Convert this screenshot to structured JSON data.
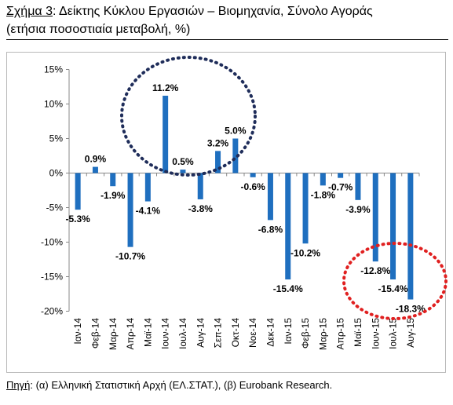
{
  "header": {
    "title_label": "Σχήμα 3",
    "title_text": ": Δείκτης Κύκλου Εργασιών – Βιομηχανία, Σύνολο Αγοράς",
    "subtitle": "(ετήσια ποσοστιαία μεταβολή, %)"
  },
  "footer": {
    "source_label": "Πηγή",
    "source_text": ": (α) Ελληνική Στατιστική Αρχή (ΕΛ.ΣΤΑΤ.), (β) Eurobank Research."
  },
  "colors": {
    "bar": "#1f6fbf",
    "highlight_circle": "#1f2d5a",
    "recent_circle": "#e02020",
    "grid": "#888888"
  },
  "chart_data": {
    "type": "bar",
    "categories": [
      "Ιαν-14",
      "Φεβ-14",
      "Μαρ-14",
      "Απρ-14",
      "Μαϊ-14",
      "Ιουν-14",
      "Ιουλ-14",
      "Αυγ-14",
      "Σεπ-14",
      "Οκτ-14",
      "Νοε-14",
      "Δεκ-14",
      "Ιαν-15",
      "Φεβ-15",
      "Μαρ-15",
      "Απρ-15",
      "Μαϊ-15",
      "Ιουν-15",
      "Ιουλ-15",
      "Αυγ-15"
    ],
    "values": [
      -5.3,
      0.9,
      -1.9,
      -10.7,
      -4.1,
      11.2,
      0.5,
      -3.8,
      3.2,
      5.0,
      -0.6,
      -6.8,
      -15.4,
      -10.2,
      -1.8,
      -0.7,
      -3.9,
      -12.8,
      -15.4,
      -18.3
    ],
    "data_labels": [
      "-5.3%",
      "0.9%",
      "-1.9%",
      "-10.7%",
      "-4.1%",
      "11.2%",
      "0.5%",
      "-3.8%",
      "3.2%",
      "5.0%",
      "-0.6%",
      "-6.8%",
      "-15.4%",
      "-10.2%",
      "-1.8%",
      "-0.7%",
      "-3.9%",
      "-12.8%",
      "-15.4%",
      "-18.3%"
    ],
    "y_ticks": [
      15,
      10,
      5,
      0,
      -5,
      -10,
      -15,
      -20
    ],
    "y_tick_labels": [
      "15%",
      "10%",
      "5%",
      "0%",
      "-5%",
      "-10%",
      "-15%",
      "-20%"
    ],
    "ylim": [
      -20,
      15
    ],
    "title": "",
    "xlabel": "",
    "ylabel": "",
    "grid": false,
    "legend": "none"
  }
}
